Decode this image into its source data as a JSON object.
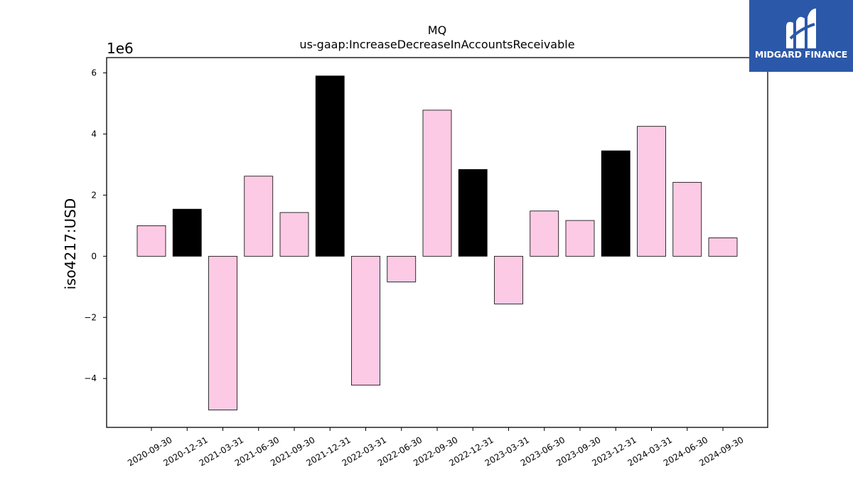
{
  "branding": {
    "company_name": "MIDGARD FINANCE",
    "logo_icon": "midgard-m-logo-icon",
    "logo_bg_color": "#2c58a9"
  },
  "chart_data": {
    "type": "bar",
    "title": "MQ",
    "subtitle": "us-gaap:IncreaseDecreaseInAccountsReceivable",
    "xlabel": "",
    "ylabel": "iso4217:USD",
    "y_scale_label": "1e6",
    "ylim": [
      -5.6,
      6.5
    ],
    "y_ticks": [
      -4,
      -2,
      0,
      2,
      4,
      6
    ],
    "y_tick_labels": [
      "−4",
      "−2",
      "0",
      "2",
      "4",
      "6"
    ],
    "grid": false,
    "categories": [
      "2020-09-30",
      "2020-12-31",
      "2021-03-31",
      "2021-06-30",
      "2021-09-30",
      "2021-12-31",
      "2022-03-31",
      "2022-06-30",
      "2022-09-30",
      "2022-12-31",
      "2023-03-31",
      "2023-06-30",
      "2023-09-30",
      "2023-12-31",
      "2024-03-31",
      "2024-06-30",
      "2024-09-30"
    ],
    "values": [
      1.0,
      1.54,
      -5.03,
      2.62,
      1.43,
      5.9,
      -4.22,
      -0.84,
      4.78,
      2.84,
      -1.56,
      1.48,
      1.17,
      3.45,
      4.25,
      2.42,
      0.6
    ],
    "bar_colors": [
      "#fccae4",
      "#000000",
      "#fccae4",
      "#fccae4",
      "#fccae4",
      "#000000",
      "#fccae4",
      "#fccae4",
      "#fccae4",
      "#000000",
      "#fccae4",
      "#fccae4",
      "#fccae4",
      "#000000",
      "#fccae4",
      "#fccae4",
      "#fccae4"
    ],
    "colors": {
      "pink": "#fccae4",
      "black": "#000000"
    }
  }
}
